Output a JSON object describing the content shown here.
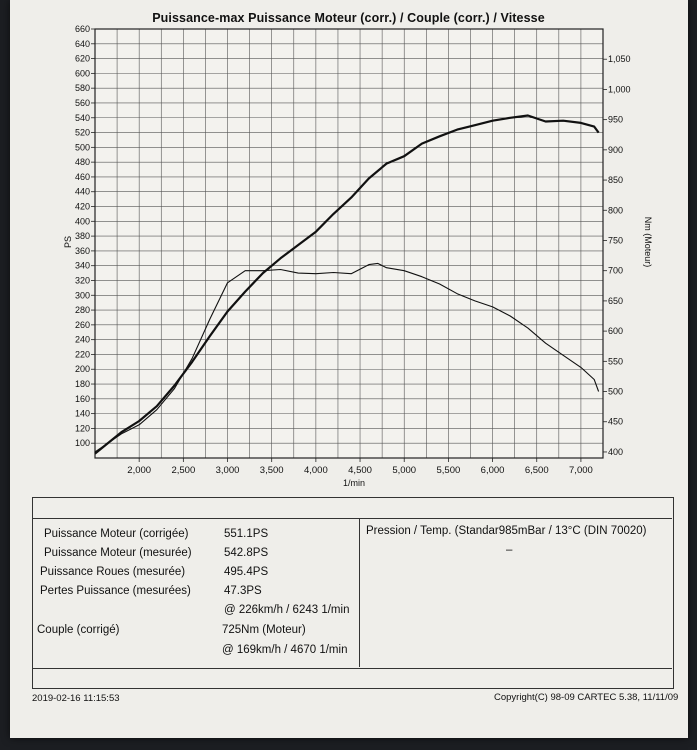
{
  "chart_data": {
    "type": "line",
    "title": "Puissance-max Puissance Moteur (corr.) / Couple (corr.) / Vitesse",
    "xlabel": "1/min",
    "ylabel_left": "PS",
    "ylabel_right": "Nm (Moteur)",
    "xlim": [
      1500,
      7250
    ],
    "ylim_left": [
      80,
      660
    ],
    "ylim_right": [
      390,
      1100
    ],
    "x_ticks": [
      2000,
      2500,
      3000,
      3500,
      4000,
      4500,
      5000,
      5500,
      6000,
      6500,
      7000
    ],
    "x_tick_labels": [
      "2,000",
      "2,500",
      "3,000",
      "3,500",
      "4,000",
      "4,500",
      "5,000",
      "5,500",
      "6,000",
      "6,500",
      "7,000"
    ],
    "y_left_ticks": [
      100,
      120,
      140,
      160,
      180,
      200,
      220,
      240,
      260,
      280,
      300,
      320,
      340,
      360,
      380,
      400,
      420,
      440,
      460,
      480,
      500,
      520,
      540,
      560,
      580,
      600,
      620,
      640,
      660
    ],
    "y_right_ticks": [
      400,
      450,
      500,
      550,
      600,
      650,
      700,
      750,
      800,
      850,
      900,
      950,
      1000,
      1050
    ],
    "y_right_tick_labels": [
      "400",
      "450",
      "500",
      "550",
      "600",
      "650",
      "700",
      "750",
      "800",
      "850",
      "900",
      "950",
      "1,000",
      "1,050"
    ],
    "grid": true,
    "series": [
      {
        "name": "Puissance Moteur (corr.)",
        "axis": "left",
        "units": "PS",
        "x": [
          1500,
          1800,
          2000,
          2200,
          2400,
          2600,
          2800,
          3000,
          3200,
          3400,
          3600,
          3800,
          4000,
          4200,
          4400,
          4600,
          4800,
          5000,
          5200,
          5400,
          5600,
          5800,
          6000,
          6200,
          6400,
          6600,
          6800,
          7000,
          7150,
          7200
        ],
        "values": [
          86,
          115,
          130,
          150,
          178,
          210,
          245,
          278,
          305,
          330,
          350,
          368,
          386,
          410,
          432,
          458,
          478,
          488,
          505,
          515,
          524,
          530,
          536,
          540,
          543,
          535,
          536,
          533,
          528,
          520
        ]
      },
      {
        "name": "Couple (corr.)",
        "axis": "right",
        "units": "Nm",
        "x": [
          1500,
          1800,
          2000,
          2200,
          2400,
          2600,
          2800,
          3000,
          3200,
          3400,
          3600,
          3800,
          4000,
          4200,
          4400,
          4600,
          4700,
          4800,
          5000,
          5200,
          5400,
          5600,
          5800,
          6000,
          6200,
          6400,
          6600,
          6800,
          7000,
          7150,
          7200
        ],
        "values": [
          400,
          430,
          445,
          470,
          505,
          555,
          620,
          680,
          700,
          700,
          702,
          696,
          695,
          697,
          695,
          710,
          712,
          705,
          700,
          690,
          678,
          662,
          650,
          640,
          625,
          605,
          580,
          560,
          540,
          520,
          500
        ]
      }
    ]
  },
  "results": {
    "rows": [
      {
        "label": "Puissance Moteur (corrigée)",
        "value": "551.1PS"
      },
      {
        "label": "Puissance Moteur (mesurée)",
        "value": "542.8PS"
      },
      {
        "label": "Puissance Roues (mesurée)",
        "value": "495.4PS"
      },
      {
        "label": "Pertes Puissance (mesurées)",
        "value": "47.3PS"
      },
      {
        "label": "",
        "value": "@ 226km/h / 6243 1/min"
      },
      {
        "label": "Couple (corrigé)",
        "value": "725Nm (Moteur)"
      },
      {
        "label": "",
        "value": "@ 169km/h / 4670 1/min"
      }
    ],
    "conditions": "Pression / Temp. (Standar985mBar / 13°C  (DIN 70020)",
    "dash": "–"
  },
  "footer": {
    "timestamp": "2019-02-16 11:15:53",
    "copyright": "Copyright(C) 98-09 CARTEC 5.38, 11/11/09"
  }
}
